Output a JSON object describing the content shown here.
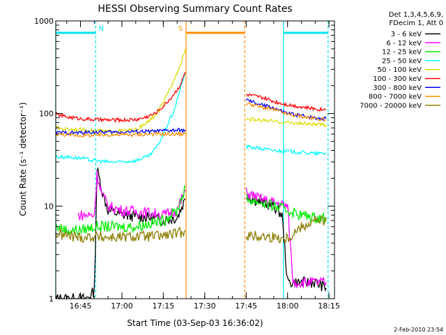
{
  "chart_data": {
    "type": "line",
    "title": "HESSI Observing Summary Count Rates",
    "xlabel": "Start Time (03-Sep-03 16:36:02)",
    "ylabel": "Count Rate (s⁻¹ detector⁻¹)",
    "y_scale": "log",
    "ylim": [
      1,
      1000
    ],
    "xlim": [
      "16:36:02",
      "18:17:00"
    ],
    "x_ticks": [
      "16:45",
      "17:00",
      "17:15",
      "17:30",
      "17:45",
      "18:00",
      "18:15"
    ],
    "y_ticks": [
      "1",
      "10",
      "100",
      "1000"
    ],
    "legend_header": [
      "Det 1,3,4,5,6,9,",
      "FDecim 1, Att 0"
    ],
    "legend_position": "right",
    "date_stamp": "2-Feb-2010 23:54",
    "markers": [
      {
        "label": "N",
        "start": "16:36:02",
        "end": "16:50:30",
        "color": "#00e5ee"
      },
      {
        "label": "S",
        "start": "17:23:15",
        "end": "17:44:30",
        "color": "#ff8c00"
      },
      {
        "label": "",
        "start": "17:58:30",
        "end": "18:14:40",
        "color": "#00e5ee"
      }
    ],
    "series": [
      {
        "name": "3 - 6 keV",
        "color": "#000000",
        "x": [
          "16:36:02",
          "16:47",
          "16:50",
          "16:51",
          "16:53",
          "16:55",
          "17:00",
          "17:10",
          "17:15",
          "17:20",
          "17:23",
          "17:45",
          "17:50",
          "17:55",
          "17:58",
          "18:00",
          "18:05",
          "18:10",
          "18:14"
        ],
        "values": [
          1,
          1,
          1.2,
          25,
          14,
          9,
          8,
          7.5,
          7,
          7.5,
          12,
          13,
          11,
          10,
          8,
          1.5,
          1.5,
          1.5,
          1.3
        ]
      },
      {
        "name": "6 - 12 keV",
        "color": "#ff00ff",
        "x": [
          "16:44",
          "16:50",
          "16:51",
          "16:53",
          "16:55",
          "17:00",
          "17:10",
          "17:15",
          "17:20",
          "17:23",
          "17:45",
          "17:50",
          "17:55",
          "18:00",
          "18:02",
          "18:05",
          "18:10",
          "18:14"
        ],
        "values": [
          8,
          8,
          22,
          13,
          10,
          9,
          8.5,
          8,
          9,
          15,
          14,
          12,
          11,
          10,
          1.5,
          1.5,
          1.5,
          1.5
        ]
      },
      {
        "name": "12 - 25 keV",
        "color": "#00ee00",
        "x": [
          "16:36",
          "16:40",
          "16:45",
          "16:50",
          "16:55",
          "17:00",
          "17:05",
          "17:10",
          "17:15",
          "17:20",
          "17:23",
          "17:45",
          "17:50",
          "17:55",
          "18:00",
          "18:05",
          "18:10",
          "18:14"
        ],
        "values": [
          6,
          5.5,
          5.5,
          6,
          6,
          6,
          6,
          6.5,
          7,
          9,
          16,
          12,
          11,
          10,
          9,
          8,
          7.5,
          7.5
        ]
      },
      {
        "name": "25 - 50 keV",
        "color": "#00ffff",
        "x": [
          "16:36",
          "16:40",
          "16:45",
          "16:50",
          "16:55",
          "17:00",
          "17:05",
          "17:10",
          "17:13",
          "17:16",
          "17:19",
          "17:21",
          "17:23",
          "17:45",
          "17:50",
          "17:55",
          "18:00",
          "18:05",
          "18:10",
          "18:14"
        ],
        "values": [
          34,
          34,
          33,
          31,
          30,
          30,
          31,
          35,
          45,
          70,
          110,
          180,
          280,
          44,
          42,
          40,
          39,
          38,
          37,
          37
        ]
      },
      {
        "name": "50 - 100 keV",
        "color": "#dddd00",
        "x": [
          "16:36",
          "16:40",
          "16:45",
          "16:50",
          "16:55",
          "17:00",
          "17:05",
          "17:08",
          "17:12",
          "17:15",
          "17:18",
          "17:21",
          "17:23",
          "17:45",
          "17:50",
          "17:55",
          "18:00",
          "18:05",
          "18:10",
          "18:14"
        ],
        "values": [
          70,
          68,
          67,
          65,
          64,
          65,
          67,
          75,
          95,
          130,
          200,
          330,
          500,
          88,
          85,
          82,
          80,
          78,
          76,
          75
        ]
      },
      {
        "name": "100 - 300 keV",
        "color": "#ff0000",
        "x": [
          "16:36",
          "16:40",
          "16:45",
          "16:50",
          "16:55",
          "17:00",
          "17:05",
          "17:08",
          "17:12",
          "17:15",
          "17:18",
          "17:21",
          "17:23",
          "17:45",
          "17:50",
          "17:52",
          "17:55",
          "18:00",
          "18:05",
          "18:10",
          "18:14"
        ],
        "values": [
          98,
          92,
          88,
          86,
          85,
          85,
          86,
          90,
          100,
          120,
          150,
          200,
          280,
          160,
          150,
          145,
          135,
          125,
          118,
          112,
          110
        ]
      },
      {
        "name": "300 - 800 keV",
        "color": "#0000ff",
        "x": [
          "16:36",
          "16:40",
          "16:45",
          "16:50",
          "16:55",
          "17:00",
          "17:05",
          "17:10",
          "17:15",
          "17:20",
          "17:23",
          "17:45",
          "17:50",
          "17:55",
          "18:00",
          "18:05",
          "18:10",
          "18:14"
        ],
        "values": [
          62,
          62,
          62,
          63,
          63,
          63,
          64,
          64,
          65,
          66,
          66,
          140,
          125,
          115,
          100,
          95,
          90,
          88
        ]
      },
      {
        "name": "800 - 7000 keV",
        "color": "#ff8c00",
        "x": [
          "16:36",
          "16:40",
          "16:45",
          "16:50",
          "16:55",
          "17:00",
          "17:05",
          "17:10",
          "17:15",
          "17:20",
          "17:23",
          "17:45",
          "17:50",
          "17:55",
          "18:00",
          "18:05",
          "18:10",
          "18:14"
        ],
        "values": [
          60,
          59,
          58,
          58,
          59,
          59,
          59,
          60,
          60,
          60,
          60,
          130,
          118,
          110,
          98,
          93,
          88,
          86
        ]
      },
      {
        "name": "7000 - 20000 keV",
        "color": "#8b7d00",
        "x": [
          "16:36",
          "16:40",
          "16:45",
          "16:50",
          "16:55",
          "17:00",
          "17:05",
          "17:10",
          "17:15",
          "17:20",
          "17:23",
          "17:45",
          "17:50",
          "17:55",
          "18:00",
          "18:05",
          "18:10",
          "18:14"
        ],
        "values": [
          5,
          4.8,
          4.6,
          4.7,
          4.6,
          4.6,
          4.7,
          4.7,
          4.8,
          5,
          5.5,
          4.8,
          4.7,
          4.6,
          4.5,
          6,
          7,
          7
        ]
      }
    ]
  }
}
